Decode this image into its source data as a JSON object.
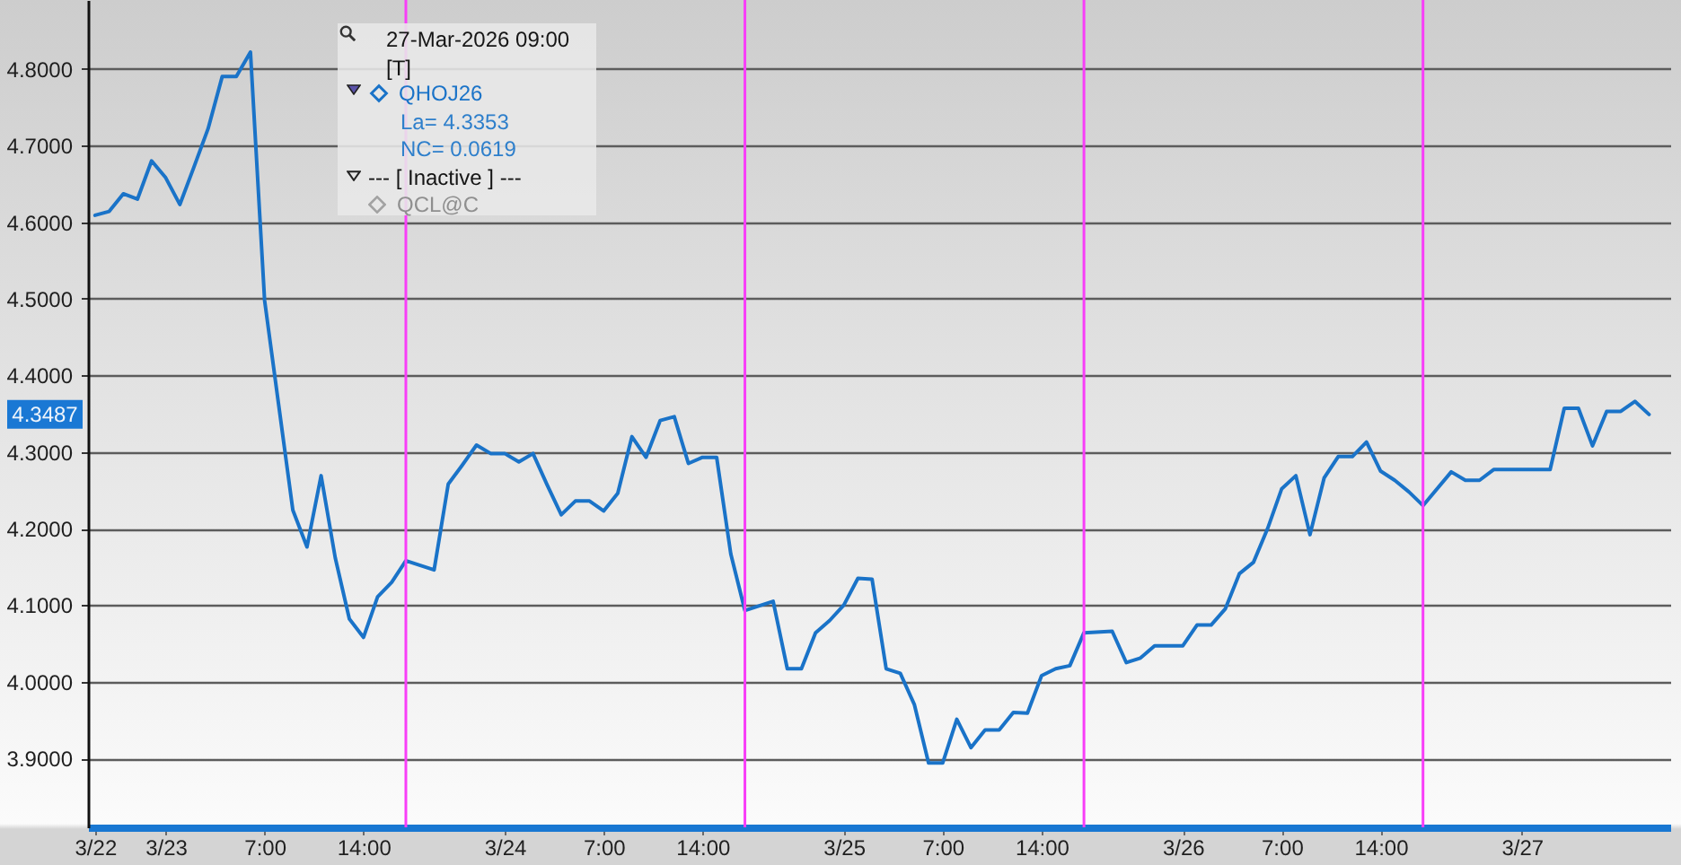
{
  "chart_data": {
    "type": "line",
    "annotations": [
      "27-Mar-2026 09:00",
      "[T]",
      "La= 4.3353",
      "NC= 0.0619",
      "--- [ Inactive ] ---",
      "QCL@C",
      "4.3487"
    ],
    "x": [
      "2026-03-22T19:00",
      "2026-03-22T20:00",
      "2026-03-22T21:00",
      "2026-03-22T22:00",
      "2026-03-22T23:00",
      "2026-03-23T00:00",
      "2026-03-23T01:00",
      "2026-03-23T02:00",
      "2026-03-23T03:00",
      "2026-03-23T04:00",
      "2026-03-23T05:00",
      "2026-03-23T06:00",
      "2026-03-23T07:00",
      "2026-03-23T08:00",
      "2026-03-23T09:00",
      "2026-03-23T10:00",
      "2026-03-23T11:00",
      "2026-03-23T12:00",
      "2026-03-23T13:00",
      "2026-03-23T14:00",
      "2026-03-23T15:00",
      "2026-03-23T16:00",
      "2026-03-23T17:00",
      "2026-03-23T19:00",
      "2026-03-23T20:00",
      "2026-03-23T21:00",
      "2026-03-23T22:00",
      "2026-03-23T23:00",
      "2026-03-24T00:00",
      "2026-03-24T01:00",
      "2026-03-24T02:00",
      "2026-03-24T03:00",
      "2026-03-24T04:00",
      "2026-03-24T05:00",
      "2026-03-24T06:00",
      "2026-03-24T07:00",
      "2026-03-24T08:00",
      "2026-03-24T09:00",
      "2026-03-24T10:00",
      "2026-03-24T11:00",
      "2026-03-24T12:00",
      "2026-03-24T13:00",
      "2026-03-24T14:00",
      "2026-03-24T15:00",
      "2026-03-24T16:00",
      "2026-03-24T17:00",
      "2026-03-24T19:00",
      "2026-03-24T20:00",
      "2026-03-24T21:00",
      "2026-03-24T22:00",
      "2026-03-24T23:00",
      "2026-03-25T00:00",
      "2026-03-25T01:00",
      "2026-03-25T02:00",
      "2026-03-25T03:00",
      "2026-03-25T04:00",
      "2026-03-25T05:00",
      "2026-03-25T06:00",
      "2026-03-25T07:00",
      "2026-03-25T08:00",
      "2026-03-25T09:00",
      "2026-03-25T10:00",
      "2026-03-25T11:00",
      "2026-03-25T12:00",
      "2026-03-25T13:00",
      "2026-03-25T14:00",
      "2026-03-25T15:00",
      "2026-03-25T16:00",
      "2026-03-25T17:00",
      "2026-03-25T19:00",
      "2026-03-25T20:00",
      "2026-03-25T21:00",
      "2026-03-25T22:00",
      "2026-03-25T23:00",
      "2026-03-26T00:00",
      "2026-03-26T01:00",
      "2026-03-26T02:00",
      "2026-03-26T03:00",
      "2026-03-26T04:00",
      "2026-03-26T05:00",
      "2026-03-26T06:00",
      "2026-03-26T07:00",
      "2026-03-26T08:00",
      "2026-03-26T09:00",
      "2026-03-26T10:00",
      "2026-03-26T11:00",
      "2026-03-26T12:00",
      "2026-03-26T13:00",
      "2026-03-26T14:00",
      "2026-03-26T15:00",
      "2026-03-26T16:00",
      "2026-03-26T17:00",
      "2026-03-26T19:00",
      "2026-03-26T20:00",
      "2026-03-26T21:00",
      "2026-03-26T22:00",
      "2026-03-26T23:00",
      "2026-03-27T00:00",
      "2026-03-27T01:00",
      "2026-03-27T02:00",
      "2026-03-27T03:00",
      "2026-03-27T04:00",
      "2026-03-27T05:00",
      "2026-03-27T06:00",
      "2026-03-27T07:00",
      "2026-03-27T08:00",
      "2026-03-27T09:00"
    ],
    "series": [
      {
        "name": "QHOJ26",
        "color": "#1a73c8",
        "values": [
          4.609,
          4.614,
          4.637,
          4.63,
          4.68,
          4.658,
          4.623,
          4.672,
          4.722,
          4.79,
          4.79,
          4.822,
          4.498,
          4.361,
          4.224,
          4.176,
          4.269,
          4.162,
          4.082,
          4.058,
          4.111,
          4.13,
          4.158,
          4.146,
          4.258,
          4.283,
          4.309,
          4.298,
          4.298,
          4.287,
          4.298,
          4.257,
          4.218,
          4.236,
          4.236,
          4.223,
          4.246,
          4.32,
          4.293,
          4.341,
          4.346,
          4.285,
          4.293,
          4.293,
          4.167,
          4.093,
          4.105,
          4.017,
          4.017,
          4.064,
          4.08,
          4.1,
          4.135,
          4.134,
          4.017,
          4.011,
          3.97,
          3.894,
          3.894,
          3.951,
          3.914,
          3.937,
          3.937,
          3.96,
          3.959,
          4.008,
          4.017,
          4.021,
          4.064,
          4.066,
          4.025,
          4.031,
          4.047,
          4.047,
          4.047,
          4.074,
          4.074,
          4.095,
          4.141,
          4.156,
          4.2,
          4.252,
          4.269,
          4.192,
          4.266,
          4.294,
          4.294,
          4.313,
          4.275,
          4.263,
          4.248,
          4.23,
          4.274,
          4.263,
          4.263,
          4.277,
          4.277,
          4.277,
          4.277,
          4.277,
          4.357,
          4.357,
          4.308,
          4.353,
          4.353,
          4.366,
          4.349
        ]
      }
    ],
    "xlim": [
      "2026-03-22T18:30",
      "2026-03-27T10:30"
    ],
    "xticks": [
      {
        "value": "2026-03-22T19:00",
        "label": "3/22"
      },
      {
        "value": "2026-03-23T00:00",
        "label": "3/23"
      },
      {
        "value": "2026-03-23T07:00",
        "label": "7:00"
      },
      {
        "value": "2026-03-23T14:00",
        "label": "14:00"
      },
      {
        "value": "2026-03-24T00:00",
        "label": "3/24"
      },
      {
        "value": "2026-03-24T07:00",
        "label": "7:00"
      },
      {
        "value": "2026-03-24T14:00",
        "label": "14:00"
      },
      {
        "value": "2026-03-25T00:00",
        "label": "3/25"
      },
      {
        "value": "2026-03-25T07:00",
        "label": "7:00"
      },
      {
        "value": "2026-03-25T14:00",
        "label": "14:00"
      },
      {
        "value": "2026-03-26T00:00",
        "label": "3/26"
      },
      {
        "value": "2026-03-26T07:00",
        "label": "7:00"
      },
      {
        "value": "2026-03-26T14:00",
        "label": "14:00"
      },
      {
        "value": "2026-03-27T00:00",
        "label": "3/27"
      }
    ],
    "ylim": [
      3.81,
      4.89
    ],
    "yticks": [
      {
        "value": 3.9,
        "label": "3.9000"
      },
      {
        "value": 4.0,
        "label": "4.0000"
      },
      {
        "value": 4.1,
        "label": "4.1000"
      },
      {
        "value": 4.2,
        "label": "4.2000"
      },
      {
        "value": 4.3,
        "label": "4.3000"
      },
      {
        "value": 4.4,
        "label": "4.4000"
      },
      {
        "value": 4.5,
        "label": "4.5000"
      },
      {
        "value": 4.6,
        "label": "4.6000"
      },
      {
        "value": 4.7,
        "label": "4.7000"
      },
      {
        "value": 4.8,
        "label": "4.8000"
      }
    ],
    "ref_lines": [
      {
        "axis": "x",
        "value": "2026-03-23T17:00",
        "color": "#f83ef8"
      },
      {
        "axis": "x",
        "value": "2026-03-24T17:00",
        "color": "#f83ef8"
      },
      {
        "axis": "x",
        "value": "2026-03-25T17:00",
        "color": "#f83ef8"
      },
      {
        "axis": "x",
        "value": "2026-03-26T17:00",
        "color": "#f83ef8"
      }
    ],
    "grid": "y",
    "legend": "top left"
  }
}
